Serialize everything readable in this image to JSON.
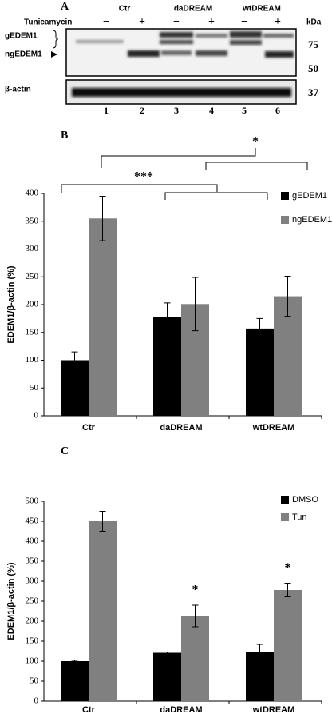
{
  "panel_a": {
    "label": "A",
    "treatment": "Tunicamycin",
    "groups": [
      "Ctr",
      "daDREAM",
      "wtDREAM"
    ],
    "lane_signs": [
      "−",
      "+",
      "−",
      "+",
      "−",
      "+"
    ],
    "unit": "kDa",
    "markers": [
      "75",
      "50",
      "37"
    ],
    "bands": [
      "gEDEM1",
      "ngEDEM1",
      "β-actin"
    ],
    "lanes": [
      "1",
      "2",
      "3",
      "4",
      "5",
      "6"
    ]
  },
  "chart_data": [
    {
      "type": "bar",
      "label": "B",
      "y_label": "EDEM1/β-actin (%)",
      "categories": [
        "Ctr",
        "daDREAM",
        "wtDREAM"
      ],
      "series": [
        {
          "name": "gEDEM1",
          "color": "#000000",
          "values": [
            100,
            178,
            157
          ],
          "errors": [
            15,
            25,
            18
          ]
        },
        {
          "name": "ngEDEM1",
          "color": "#808080",
          "values": [
            355,
            201,
            215
          ],
          "errors": [
            40,
            48,
            36
          ]
        }
      ],
      "ylim": [
        0,
        400
      ],
      "yticks": [
        0,
        50,
        100,
        150,
        200,
        250,
        300,
        350,
        400
      ],
      "legend": "upper-right",
      "annotations": [
        "*",
        "***"
      ]
    },
    {
      "type": "bar",
      "label": "C",
      "y_label": "EDEM1/β-actin (%)",
      "categories": [
        "Ctr",
        "daDREAM",
        "wtDREAM"
      ],
      "series": [
        {
          "name": "DMSO",
          "color": "#000000",
          "values": [
            100,
            121,
            124
          ],
          "errors": [
            2,
            2,
            18
          ]
        },
        {
          "name": "Tun",
          "color": "#808080",
          "values": [
            450,
            213,
            278
          ],
          "errors": [
            25,
            27,
            17
          ]
        }
      ],
      "ylim": [
        0,
        500
      ],
      "yticks": [
        0,
        50,
        100,
        150,
        200,
        250,
        300,
        350,
        400,
        450,
        500
      ],
      "legend": "upper-right",
      "annotations": [
        "*",
        "*"
      ]
    }
  ]
}
